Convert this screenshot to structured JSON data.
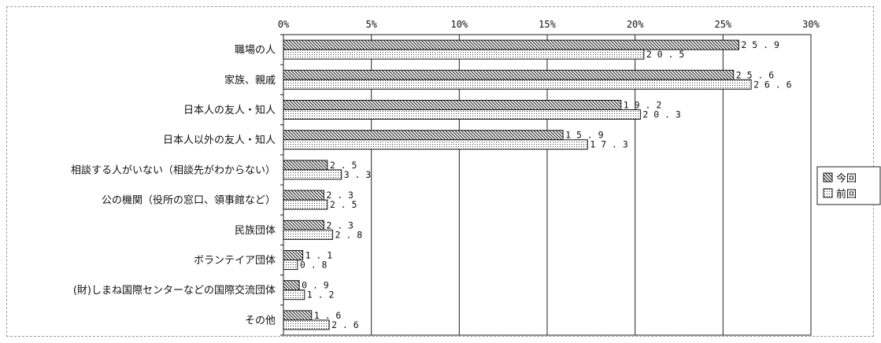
{
  "chart_data": {
    "type": "bar",
    "orientation": "horizontal",
    "categories": [
      "職場の人",
      "家族、親戚",
      "日本人の友人・知人",
      "日本人以外の友人・知人",
      "相談する人がいない（相談先がわからない）",
      "公の機関（役所の窓口、領事館など）",
      "民族団体",
      "ボランテイア団体",
      "(財)しまね国際センターなどの国際交流団体",
      "その他"
    ],
    "series": [
      {
        "name": "今回",
        "values": [
          25.9,
          25.6,
          19.2,
          15.9,
          2.5,
          2.3,
          2.3,
          1.1,
          0.9,
          1.6
        ],
        "pattern": "diagonal-hatch"
      },
      {
        "name": "前回",
        "values": [
          20.5,
          26.6,
          20.3,
          17.3,
          3.3,
          2.5,
          2.8,
          0.8,
          1.2,
          2.6
        ],
        "pattern": "dots"
      }
    ],
    "x_ticks": [
      "0%",
      "5%",
      "10%",
      "15%",
      "20%",
      "25%",
      "30%"
    ],
    "xlim": [
      0,
      30
    ],
    "title": "",
    "xlabel": "",
    "ylabel": "",
    "grid": "vertical",
    "legend": "right"
  }
}
